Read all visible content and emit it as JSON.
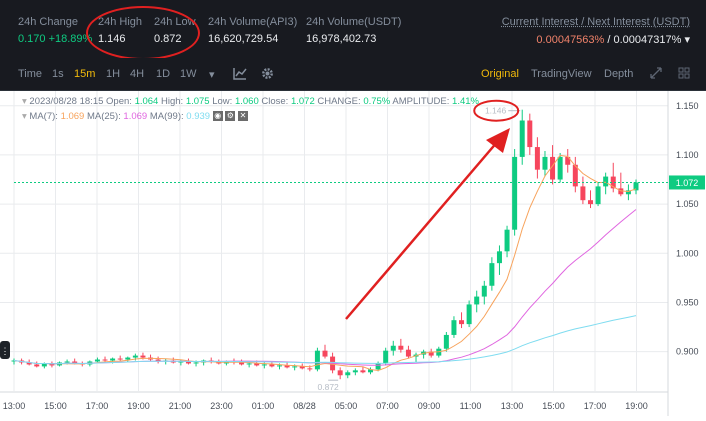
{
  "stats": {
    "change_label": "24h Change",
    "change_value": "0.170 +18.89%",
    "high_label": "24h High",
    "high_value": "1.146",
    "low_label": "24h Low",
    "low_value": "0.872",
    "vol_api3_label": "24h Volume(API3)",
    "vol_api3_value": "16,620,729.54",
    "vol_usdt_label": "24h Volume(USDT)",
    "vol_usdt_value": "16,978,402.73",
    "interest_label": "Current Interest / Next Interest (USDT)",
    "interest_current": "0.00047563%",
    "interest_sep": " / ",
    "interest_next": "0.00047317%",
    "interest_arrow": "▾"
  },
  "toolbar": {
    "time_label": "Time",
    "intervals": [
      "1s",
      "15m",
      "1H",
      "4H",
      "1D",
      "1W"
    ],
    "active_interval": "15m",
    "dropdown_glyph": "▾",
    "views": [
      "Original",
      "TradingView",
      "Depth"
    ],
    "active_view": "Original"
  },
  "legend": {
    "line1": "2023/08/28 18:15",
    "open_label": "Open:",
    "open_value": "1.064",
    "high_label": "High:",
    "high_value": "1.075",
    "low_label": "Low:",
    "low_value": "1.060",
    "close_label": "Close:",
    "close_value": "1.072",
    "change_label": "CHANGE:",
    "change_value": "0.75%",
    "amp_label": "AMPLITUDE:",
    "amp_value": "1.41%",
    "ma7_label": "MA(7):",
    "ma7_value": "1.069",
    "ma25_label": "MA(25):",
    "ma25_value": "1.069",
    "ma99_label": "MA(99):",
    "ma99_value": "0.939"
  },
  "chart_data": {
    "type": "candlestick",
    "y_ticks": [
      "1.150",
      "1.100",
      "1.050",
      "1.000",
      "0.950",
      "0.900"
    ],
    "x_ticks": [
      "13:00",
      "15:00",
      "17:00",
      "19:00",
      "21:00",
      "23:00",
      "01:00",
      "08/28",
      "05:00",
      "07:00",
      "09:00",
      "11:00",
      "13:00",
      "15:00",
      "17:00",
      "19:00"
    ],
    "ylim": [
      0.86,
      1.165
    ],
    "last_price": "1.072",
    "high_marker": "1.146",
    "low_marker": "0.872",
    "colors": {
      "up": "#0ecb81",
      "down": "#f6465d",
      "ma7": "#f7a35c",
      "ma25": "#e066e0",
      "ma99": "#7fdcf0"
    },
    "candles": [
      [
        0.89,
        0.893,
        0.887,
        0.891
      ],
      [
        0.891,
        0.893,
        0.887,
        0.889
      ],
      [
        0.889,
        0.892,
        0.886,
        0.887
      ],
      [
        0.887,
        0.89,
        0.884,
        0.885
      ],
      [
        0.885,
        0.889,
        0.883,
        0.888
      ],
      [
        0.888,
        0.89,
        0.884,
        0.886
      ],
      [
        0.886,
        0.89,
        0.885,
        0.889
      ],
      [
        0.889,
        0.892,
        0.887,
        0.89
      ],
      [
        0.89,
        0.893,
        0.887,
        0.888
      ],
      [
        0.888,
        0.89,
        0.885,
        0.887
      ],
      [
        0.887,
        0.891,
        0.885,
        0.89
      ],
      [
        0.89,
        0.894,
        0.888,
        0.892
      ],
      [
        0.892,
        0.895,
        0.889,
        0.891
      ],
      [
        0.891,
        0.894,
        0.888,
        0.893
      ],
      [
        0.893,
        0.896,
        0.89,
        0.892
      ],
      [
        0.892,
        0.895,
        0.889,
        0.894
      ],
      [
        0.894,
        0.898,
        0.891,
        0.896
      ],
      [
        0.896,
        0.899,
        0.892,
        0.894
      ],
      [
        0.894,
        0.897,
        0.89,
        0.892
      ],
      [
        0.892,
        0.895,
        0.888,
        0.89
      ],
      [
        0.89,
        0.893,
        0.887,
        0.891
      ],
      [
        0.891,
        0.894,
        0.888,
        0.889
      ],
      [
        0.889,
        0.892,
        0.886,
        0.89
      ],
      [
        0.89,
        0.893,
        0.887,
        0.888
      ],
      [
        0.888,
        0.891,
        0.885,
        0.889
      ],
      [
        0.889,
        0.892,
        0.886,
        0.891
      ],
      [
        0.891,
        0.894,
        0.888,
        0.89
      ],
      [
        0.89,
        0.892,
        0.887,
        0.888
      ],
      [
        0.888,
        0.891,
        0.886,
        0.89
      ],
      [
        0.89,
        0.893,
        0.887,
        0.889
      ],
      [
        0.889,
        0.892,
        0.886,
        0.887
      ],
      [
        0.887,
        0.89,
        0.884,
        0.888
      ],
      [
        0.888,
        0.891,
        0.885,
        0.886
      ],
      [
        0.886,
        0.889,
        0.883,
        0.887
      ],
      [
        0.887,
        0.89,
        0.884,
        0.885
      ],
      [
        0.885,
        0.888,
        0.882,
        0.886
      ],
      [
        0.886,
        0.889,
        0.883,
        0.884
      ],
      [
        0.884,
        0.887,
        0.881,
        0.885
      ],
      [
        0.885,
        0.888,
        0.882,
        0.883
      ],
      [
        0.883,
        0.886,
        0.88,
        0.882
      ],
      [
        0.882,
        0.904,
        0.88,
        0.901
      ],
      [
        0.901,
        0.907,
        0.893,
        0.895
      ],
      [
        0.895,
        0.899,
        0.878,
        0.881
      ],
      [
        0.881,
        0.884,
        0.872,
        0.876
      ],
      [
        0.876,
        0.881,
        0.873,
        0.879
      ],
      [
        0.879,
        0.883,
        0.876,
        0.881
      ],
      [
        0.881,
        0.885,
        0.878,
        0.879
      ],
      [
        0.879,
        0.884,
        0.877,
        0.882
      ],
      [
        0.882,
        0.89,
        0.88,
        0.888
      ],
      [
        0.888,
        0.904,
        0.886,
        0.901
      ],
      [
        0.901,
        0.911,
        0.896,
        0.906
      ],
      [
        0.906,
        0.913,
        0.899,
        0.902
      ],
      [
        0.902,
        0.906,
        0.893,
        0.895
      ],
      [
        0.895,
        0.899,
        0.889,
        0.897
      ],
      [
        0.897,
        0.902,
        0.893,
        0.9
      ],
      [
        0.9,
        0.903,
        0.894,
        0.896
      ],
      [
        0.896,
        0.905,
        0.894,
        0.903
      ],
      [
        0.903,
        0.92,
        0.9,
        0.917
      ],
      [
        0.917,
        0.936,
        0.914,
        0.932
      ],
      [
        0.932,
        0.94,
        0.924,
        0.928
      ],
      [
        0.928,
        0.952,
        0.925,
        0.948
      ],
      [
        0.948,
        0.962,
        0.94,
        0.956
      ],
      [
        0.956,
        0.972,
        0.948,
        0.967
      ],
      [
        0.967,
        0.996,
        0.962,
        0.99
      ],
      [
        0.99,
        1.008,
        0.978,
        1.002
      ],
      [
        1.002,
        1.028,
        0.996,
        1.024
      ],
      [
        1.024,
        1.106,
        1.018,
        1.098
      ],
      [
        1.098,
        1.146,
        1.09,
        1.135
      ],
      [
        1.135,
        1.142,
        1.1,
        1.108
      ],
      [
        1.108,
        1.118,
        1.076,
        1.085
      ],
      [
        1.085,
        1.104,
        1.078,
        1.098
      ],
      [
        1.098,
        1.11,
        1.07,
        1.075
      ],
      [
        1.075,
        1.102,
        1.072,
        1.098
      ],
      [
        1.098,
        1.106,
        1.082,
        1.09
      ],
      [
        1.09,
        1.098,
        1.062,
        1.068
      ],
      [
        1.068,
        1.078,
        1.05,
        1.054
      ],
      [
        1.054,
        1.064,
        1.046,
        1.05
      ],
      [
        1.05,
        1.072,
        1.048,
        1.068
      ],
      [
        1.068,
        1.082,
        1.06,
        1.078
      ],
      [
        1.078,
        1.092,
        1.062,
        1.066
      ],
      [
        1.066,
        1.082,
        1.058,
        1.06
      ],
      [
        1.06,
        1.07,
        1.054,
        1.064
      ],
      [
        1.064,
        1.075,
        1.06,
        1.072
      ]
    ]
  }
}
